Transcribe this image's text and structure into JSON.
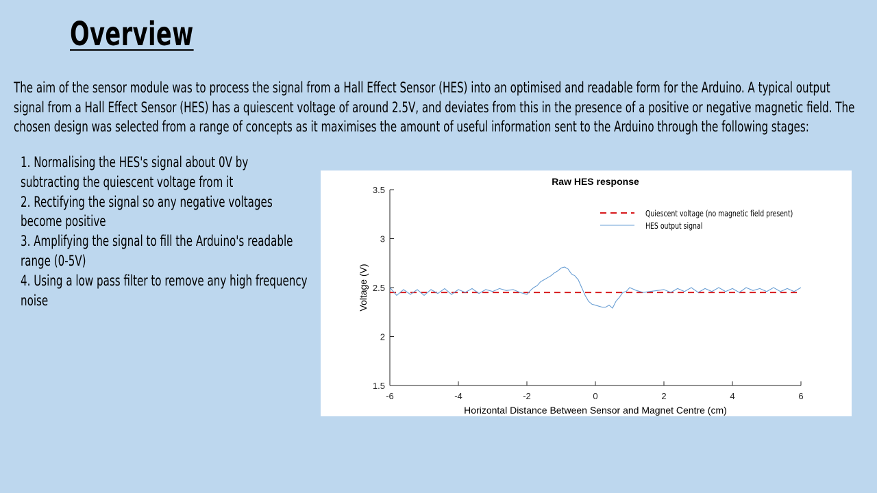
{
  "slide": {
    "title": "Overview",
    "intro": "The aim of the sensor module was to process the signal from a Hall Effect  Sensor (HES) into an optimised and readable form for the Arduino. A typical output signal from a Hall Effect  Sensor (HES) has a quiescent voltage of around 2.5V, and deviates from this in the presence of a positive or negative magnetic field. The chosen design was selected from a range of concepts as it maximises the amount of useful information  sent to the Arduino through the following  stages:",
    "steps": [
      " 1. Normalising the HES's signal about 0V by subtracting the quiescent voltage from it",
      "2. Rectifying the signal so any negative voltages become positive",
      "3. Amplifying the signal to fill the Arduino's readable range (0-5V)",
      "4. Using a low pass filter to remove any high frequency noise"
    ]
  },
  "chart_data": {
    "type": "line",
    "title": "Raw HES response",
    "xlabel": "Horizontal Distance Between Sensor and Magnet Centre (cm)",
    "ylabel": "Voltage (V)",
    "xlim": [
      -6,
      6
    ],
    "ylim": [
      1.5,
      3.5
    ],
    "xticks": [
      "-6",
      "-4",
      "-2",
      "0",
      "2",
      "4",
      "6"
    ],
    "yticks": [
      "1.5",
      "2",
      "2.5",
      "3",
      "3.5"
    ],
    "grid": false,
    "legend_position": "top-right",
    "series": [
      {
        "name": "Quiescent  voltage  (no magnetic  field  present)",
        "style": "dashed",
        "color": "#d7191c",
        "x": [
          -6,
          6
        ],
        "y": [
          2.45,
          2.45
        ]
      },
      {
        "name": "HES output  signal",
        "style": "solid",
        "color": "#6a9fd4",
        "x": [
          -6.0,
          -5.8,
          -5.6,
          -5.4,
          -5.2,
          -5.0,
          -4.8,
          -4.6,
          -4.4,
          -4.2,
          -4.0,
          -3.8,
          -3.6,
          -3.4,
          -3.2,
          -3.0,
          -2.8,
          -2.6,
          -2.4,
          -2.2,
          -2.0,
          -1.9,
          -1.8,
          -1.7,
          -1.6,
          -1.5,
          -1.4,
          -1.3,
          -1.2,
          -1.1,
          -1.0,
          -0.9,
          -0.8,
          -0.7,
          -0.6,
          -0.5,
          -0.4,
          -0.3,
          -0.2,
          -0.1,
          0.0,
          0.1,
          0.2,
          0.3,
          0.4,
          0.5,
          0.6,
          0.7,
          0.8,
          0.9,
          1.0,
          1.2,
          1.4,
          1.6,
          1.8,
          2.0,
          2.2,
          2.4,
          2.6,
          2.8,
          3.0,
          3.2,
          3.4,
          3.6,
          3.8,
          4.0,
          4.2,
          4.4,
          4.6,
          4.8,
          5.0,
          5.2,
          5.4,
          5.6,
          5.8,
          6.0
        ],
        "y": [
          2.5,
          2.42,
          2.48,
          2.43,
          2.48,
          2.42,
          2.48,
          2.44,
          2.49,
          2.43,
          2.48,
          2.45,
          2.49,
          2.44,
          2.48,
          2.46,
          2.49,
          2.47,
          2.48,
          2.45,
          2.43,
          2.47,
          2.5,
          2.52,
          2.56,
          2.58,
          2.6,
          2.62,
          2.65,
          2.67,
          2.7,
          2.71,
          2.69,
          2.64,
          2.62,
          2.58,
          2.5,
          2.42,
          2.36,
          2.33,
          2.32,
          2.31,
          2.3,
          2.3,
          2.32,
          2.29,
          2.36,
          2.4,
          2.45,
          2.46,
          2.5,
          2.47,
          2.45,
          2.46,
          2.47,
          2.48,
          2.45,
          2.49,
          2.46,
          2.5,
          2.45,
          2.49,
          2.46,
          2.5,
          2.46,
          2.49,
          2.45,
          2.5,
          2.47,
          2.49,
          2.46,
          2.5,
          2.46,
          2.49,
          2.46,
          2.5
        ]
      }
    ]
  }
}
